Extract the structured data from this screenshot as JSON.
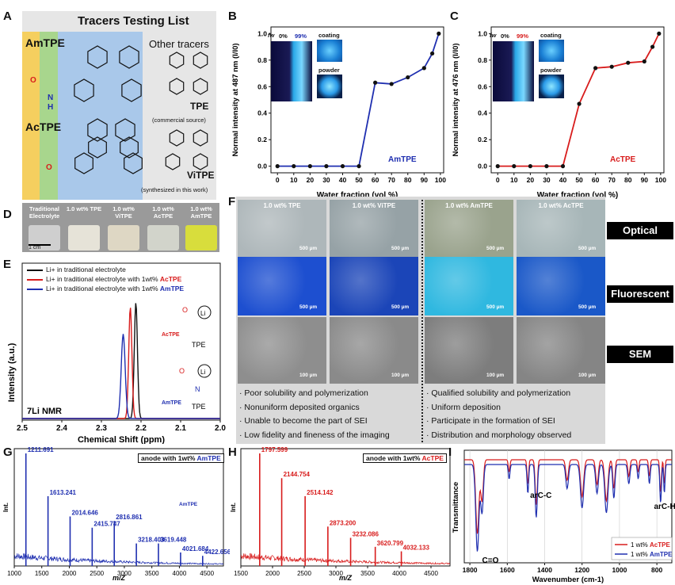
{
  "panel_labels": [
    "A",
    "B",
    "C",
    "D",
    "E",
    "F",
    "G",
    "H",
    "I"
  ],
  "panelA": {
    "title": "Tracers Testing List",
    "tracer1": "AmTPE",
    "tracer2": "AcTPE",
    "other_title": "Other tracers",
    "tpe_label": "TPE",
    "tpe_note": "(commercial source)",
    "vitpe_label": "ViTPE",
    "vitpe_note": "(synthesized in this work)",
    "atom_N": "N",
    "atom_H": "H",
    "atom_O": "O"
  },
  "panelB": {
    "inset_fw": "fw",
    "inset_0": "0%",
    "inset_99": "99%",
    "inset_coating": "coating",
    "inset_powder": "powder",
    "mol_label": "AmTPE",
    "ylabel": "Normal intensity at 487 nm (I/I0)",
    "xlabel": "Water fraction (vol %)",
    "accent": "#1f2fb0"
  },
  "panelC": {
    "inset_fw": "fw",
    "inset_0": "0%",
    "inset_99": "99%",
    "inset_coating": "coating",
    "inset_powder": "powder",
    "mol_label": "AcTPE",
    "ylabel": "Normal intensity at 476 nm (I/I0)",
    "xlabel": "Water fraction (vol %)",
    "accent": "#d81c1c"
  },
  "panelD": {
    "vials": [
      "Traditional Electrolyte",
      "1.0 wt% TPE",
      "1.0 wt% ViTPE",
      "1.0 wt% AcTPE",
      "1.0 wt% AmTPE"
    ],
    "scale": "1 cm"
  },
  "panelE": {
    "legend": [
      {
        "text": "Li+ in traditional electrolyte",
        "color": "#111111"
      },
      {
        "text": "Li+ in traditional electrolyte with 1wt% ",
        "bold": "AcTPE",
        "color": "#d81c1c"
      },
      {
        "text": "Li+ in traditional electrolyte with 1wt% ",
        "bold": "AmTPE",
        "color": "#1f2fb0"
      }
    ],
    "nmr_label": "7Li NMR",
    "xlabel": "Chemical Shift (ppm)",
    "ylabel": "Intensity (a.u.)",
    "mol1": "AcTPE",
    "mol2": "AmTPE",
    "tpe": "TPE",
    "li": "Li",
    "o": "O",
    "n": "N"
  },
  "panelF": {
    "columns": [
      "1.0 wt% TPE",
      "1.0 wt% ViTPE",
      "1.0 wt% AmTPE",
      "1.0 wt% AcTPE"
    ],
    "scale_optical": "500 µm",
    "scale_fluor": "500 µm",
    "scale_sem": "100 µm",
    "row_labels": [
      "Optical",
      "Fluorescent",
      "SEM"
    ],
    "bullets_left": [
      "Poor solubility and polymerization",
      "Nonuniform deposited organics",
      "Unable to become the part of SEI",
      "Low fidelity and fineness of the imaging"
    ],
    "bullets_right": [
      "Qualified solubility and polymerization",
      "Uniform deposition",
      "Participate in the formation of SEI",
      "Distribution and morphology observed"
    ]
  },
  "panelG": {
    "box": "anode with 1wt% ",
    "box_bold": "AmTPE",
    "mol": "AmTPE",
    "ylabel": "Int.",
    "xlabel": "m/Z",
    "color": "#1f2fb0"
  },
  "panelH": {
    "box": "anode with 1wt% ",
    "box_bold": "AcTPE",
    "ylabel": "Int.",
    "xlabel": "m/Z",
    "color": "#d81c1c"
  },
  "panelI": {
    "ylabel": "Transmittance",
    "xlabel": "Wavenumber (cm-1)",
    "ann1": "arC-C",
    "ann2": "C=O",
    "ann3": "arC-H",
    "legend1": "1 wt% ",
    "legend1_bold": "AcTPE",
    "legend2": "1 wt% ",
    "legend2_bold": "AmTPE"
  },
  "chart_data": [
    {
      "id": "B",
      "type": "line",
      "x": [
        0,
        10,
        20,
        30,
        40,
        50,
        60,
        70,
        80,
        90,
        95,
        99
      ],
      "series": [
        {
          "name": "AmTPE",
          "values": [
            0,
            0,
            0,
            0,
            0,
            0,
            0.63,
            0.62,
            0.67,
            0.74,
            0.85,
            1.0
          ]
        }
      ],
      "xticks": [
        0,
        10,
        20,
        30,
        40,
        50,
        60,
        70,
        80,
        90,
        100
      ],
      "yticks": [
        0.0,
        0.2,
        0.4,
        0.6,
        0.8,
        1.0
      ],
      "xlim": [
        -4,
        102
      ],
      "ylim": [
        -0.05,
        1.05
      ]
    },
    {
      "id": "C",
      "type": "line",
      "x": [
        0,
        10,
        20,
        30,
        40,
        50,
        60,
        70,
        80,
        90,
        95,
        99
      ],
      "series": [
        {
          "name": "AcTPE",
          "values": [
            0,
            0,
            0,
            0,
            0,
            0.47,
            0.74,
            0.75,
            0.78,
            0.79,
            0.9,
            1.0
          ]
        }
      ],
      "xticks": [
        0,
        10,
        20,
        30,
        40,
        50,
        60,
        70,
        80,
        90,
        100
      ],
      "yticks": [
        0.0,
        0.2,
        0.4,
        0.6,
        0.8,
        1.0
      ],
      "xlim": [
        -4,
        102
      ],
      "ylim": [
        -0.05,
        1.05
      ]
    },
    {
      "id": "E",
      "type": "line",
      "xticks": [
        2.5,
        2.4,
        2.3,
        2.2,
        2.1,
        2.0
      ],
      "xlim": [
        2.5,
        2.0
      ],
      "series": [
        {
          "name": "Li+ in traditional electrolyte",
          "center": 2.213,
          "height": 1.0,
          "width": 0.004
        },
        {
          "name": "Li+ in traditional electrolyte with 1wt% AcTPE",
          "center": 2.227,
          "height": 0.96,
          "width": 0.004
        },
        {
          "name": "Li+ in traditional electrolyte with 1wt% AmTPE",
          "center": 2.245,
          "height": 0.73,
          "width": 0.005
        }
      ]
    },
    {
      "id": "G",
      "type": "bar",
      "xticks": [
        1000,
        1500,
        2000,
        2500,
        3000,
        3500,
        4000,
        4500
      ],
      "xlim": [
        1000,
        4800
      ],
      "peaks": [
        {
          "x": 1211.691,
          "y": 1.0
        },
        {
          "x": 1613.241,
          "y": 0.62
        },
        {
          "x": 2014.646,
          "y": 0.44
        },
        {
          "x": 2415.747,
          "y": 0.34
        },
        {
          "x": 2816.861,
          "y": 0.4
        },
        {
          "x": 3218.403,
          "y": 0.2
        },
        {
          "x": 3619.448,
          "y": 0.2
        },
        {
          "x": 4021.684,
          "y": 0.12
        },
        {
          "x": 4422.656,
          "y": 0.09
        }
      ]
    },
    {
      "id": "H",
      "type": "bar",
      "xticks": [
        1500,
        2000,
        2500,
        3000,
        3500,
        4000,
        4500
      ],
      "xlim": [
        1500,
        4800
      ],
      "peaks": [
        {
          "x": 1797.599,
          "y": 1.0
        },
        {
          "x": 2144.754,
          "y": 0.78
        },
        {
          "x": 2514.142,
          "y": 0.62
        },
        {
          "x": 2873.2,
          "y": 0.35
        },
        {
          "x": 3232.086,
          "y": 0.25
        },
        {
          "x": 3620.799,
          "y": 0.17
        },
        {
          "x": 4032.133,
          "y": 0.13
        }
      ]
    },
    {
      "id": "I",
      "type": "line",
      "xticks": [
        1800,
        1600,
        1400,
        1200,
        1000,
        800
      ],
      "xlim": [
        1830,
        720
      ]
    }
  ]
}
